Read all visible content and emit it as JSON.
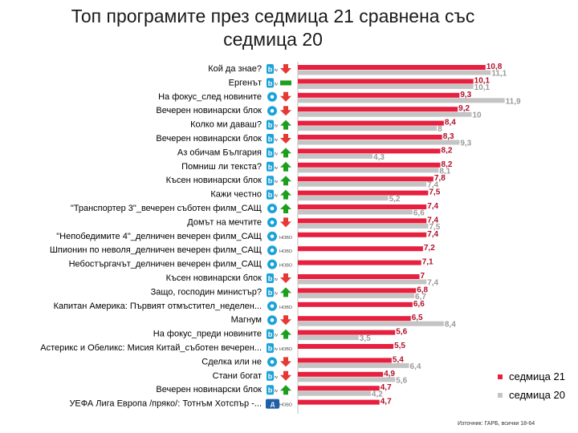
{
  "title_line1": "Топ програмите през седмица 21 сравнена със",
  "title_line2": "седмица 20",
  "source": "Източник: ГАРБ, всички 18-64",
  "colors": {
    "week21": "#e8203f",
    "week20": "#c4c4c4",
    "up": "#1e9e1e",
    "down": "#e53935"
  },
  "chart_data": {
    "type": "bar",
    "orientation": "horizontal",
    "categories": [
      "Кой да знае?",
      "Ергенът",
      "На фокус_след новините",
      "Вечерен новинарски блок",
      "Колко ми даваш?",
      "Вечерен новинарски блок",
      "Аз обичам България",
      "Помниш ли текста?",
      "Късен новинарски блок",
      "Кажи честно",
      "\"Транспортер 3\"_вечерен съботен филм_САЩ",
      "Домът на мечтите",
      "\"Непобедимите 4\"_делничен вечерен филм_САЩ",
      "Шпионин по неволя_делничен вечерен филм_САЩ",
      "Небостъргачът_делничен вечерен филм_САЩ",
      "Късен новинарски блок",
      "Защо, господин министър?",
      "Капитан Америка: Първият отмъстител_неделен...",
      "Магнум",
      "На фокус_преди новините",
      "Астерикс и Обеликс: Мисия Китай_съботен вечерен...",
      "Сделка или не",
      "Стани богат",
      "Вечерен новинарски блок",
      "УЕФА Лига Европа /пряко/: Тотнъм Хотспър -..."
    ],
    "series": [
      {
        "name": "седмица 21",
        "values": [
          10.8,
          10.1,
          9.3,
          9.2,
          8.4,
          8.3,
          8.2,
          8.2,
          7.8,
          7.5,
          7.4,
          7.4,
          7.4,
          7.2,
          7.1,
          7.0,
          6.8,
          6.6,
          6.5,
          5.6,
          5.5,
          5.4,
          4.9,
          4.7,
          4.7
        ]
      },
      {
        "name": "седмица 20",
        "values": [
          11.1,
          10.1,
          11.9,
          10.0,
          8.0,
          9.3,
          4.3,
          8.1,
          7.4,
          5.2,
          6.6,
          7.5,
          null,
          null,
          null,
          7.4,
          6.7,
          null,
          8.4,
          3.5,
          null,
          6.4,
          5.6,
          4.2,
          null
        ]
      }
    ],
    "channels": [
      "btv",
      "btv-bar",
      "nova",
      "nova",
      "btv",
      "btv",
      "btv",
      "btv",
      "btv",
      "btv",
      "nova",
      "nova",
      "nova",
      "nova",
      "nova",
      "btv",
      "btv",
      "nova",
      "nova",
      "btv",
      "btv",
      "nova",
      "btv",
      "btv",
      "diema"
    ],
    "trend": [
      "down",
      "bar",
      "down",
      "down",
      "up",
      "down",
      "up",
      "up",
      "up",
      "up",
      "up",
      "down",
      "new",
      "new",
      "new",
      "down",
      "up",
      "new",
      "down",
      "up",
      "new",
      "down",
      "down",
      "up",
      "new"
    ],
    "new_label": "НОВО",
    "xlim": [
      0,
      12.5
    ],
    "grid": false,
    "legend_position": "bottom-right"
  }
}
